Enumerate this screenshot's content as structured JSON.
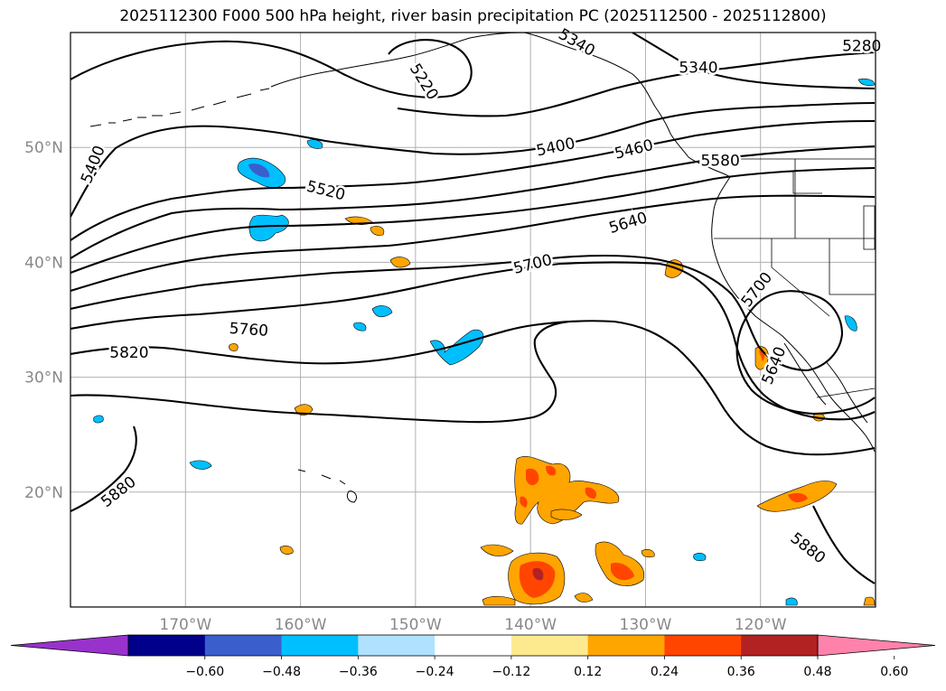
{
  "title": "2025112300 F000 500 hPa height, river basin precipitation PC (2025112500 - 2025112800)",
  "map": {
    "lon_range": [
      -180,
      -110
    ],
    "lat_range": [
      10,
      60
    ],
    "lon_ticks": [
      {
        "value": -170,
        "label": "170°W"
      },
      {
        "value": -160,
        "label": "160°W"
      },
      {
        "value": -150,
        "label": "150°W"
      },
      {
        "value": -140,
        "label": "140°W"
      },
      {
        "value": -130,
        "label": "130°W"
      },
      {
        "value": -120,
        "label": "120°W"
      }
    ],
    "lat_ticks": [
      {
        "value": 20,
        "label": "20°N"
      },
      {
        "value": 30,
        "label": "30°N"
      },
      {
        "value": 40,
        "label": "40°N"
      },
      {
        "value": 50,
        "label": "50°N"
      }
    ],
    "contour_labels": [
      {
        "text": "5220",
        "lon": -149.3,
        "lat": 55.7,
        "angle": 58
      },
      {
        "text": "5280",
        "lon": -111.2,
        "lat": 58.8,
        "angle": 0
      },
      {
        "text": "5340",
        "lon": -125.4,
        "lat": 56.9,
        "angle": 0
      },
      {
        "text": "5340",
        "lon": -136.0,
        "lat": 59.1,
        "angle": 30
      },
      {
        "text": "5400",
        "lon": -137.8,
        "lat": 50.0,
        "angle": -12
      },
      {
        "text": "5400",
        "lon": -178.0,
        "lat": 48.5,
        "angle": -68
      },
      {
        "text": "5460",
        "lon": -131.0,
        "lat": 49.8,
        "angle": -14
      },
      {
        "text": "5520",
        "lon": -157.8,
        "lat": 46.2,
        "angle": 14
      },
      {
        "text": "5580",
        "lon": -123.5,
        "lat": 48.8,
        "angle": 0
      },
      {
        "text": "5640",
        "lon": -131.5,
        "lat": 43.4,
        "angle": -17
      },
      {
        "text": "5640",
        "lon": -118.8,
        "lat": 31.0,
        "angle": -68
      },
      {
        "text": "5700",
        "lon": -139.8,
        "lat": 39.8,
        "angle": -14
      },
      {
        "text": "5700",
        "lon": -120.3,
        "lat": 37.6,
        "angle": -52
      },
      {
        "text": "5760",
        "lon": -164.5,
        "lat": 34.1,
        "angle": 4
      },
      {
        "text": "5820",
        "lon": -174.9,
        "lat": 32.1,
        "angle": 0
      },
      {
        "text": "5880",
        "lon": -175.8,
        "lat": 20.0,
        "angle": -38
      },
      {
        "text": "5880",
        "lon": -115.9,
        "lat": 15.1,
        "angle": 38
      }
    ]
  },
  "colorbar": {
    "colors": [
      "#9932cc",
      "#00008b",
      "#3a5fcd",
      "#00bfff",
      "#b0e2ff",
      "#ffffff",
      "#fdea8f",
      "#ffa500",
      "#ff4500",
      "#b22222",
      "#ff82ab"
    ],
    "tick_labels": [
      "−0.60",
      "−0.48",
      "−0.36",
      "−0.24",
      "−0.12",
      "0.12",
      "0.24",
      "0.36",
      "0.48",
      "0.60"
    ]
  }
}
